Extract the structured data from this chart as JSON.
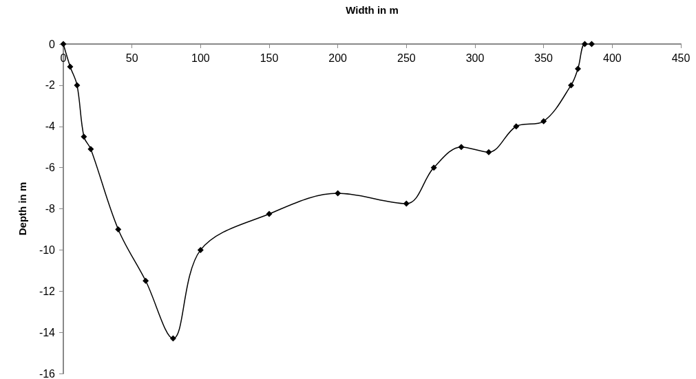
{
  "chart_data": {
    "type": "line",
    "xlabel": "Width in m",
    "ylabel": "Depth in m",
    "x": [
      0,
      5,
      10,
      15,
      20,
      40,
      60,
      80,
      100,
      150,
      200,
      250,
      270,
      290,
      310,
      330,
      350,
      370,
      375,
      380,
      385
    ],
    "series": [
      {
        "color": "#000000",
        "values": [
          0,
          -1.1,
          -2,
          -4.5,
          -5.1,
          -9,
          -11.5,
          -14.3,
          -10,
          -8.25,
          -7.25,
          -7.75,
          -6,
          -5,
          -5.25,
          -4,
          -3.75,
          -2,
          -1.2,
          0,
          0
        ]
      }
    ],
    "xlim": [
      0,
      450
    ],
    "xticks": [
      0,
      50,
      100,
      150,
      200,
      250,
      300,
      350,
      400,
      450
    ],
    "ylim": [
      -16,
      0
    ],
    "yticks": [
      -16,
      -14,
      -12,
      -10,
      -8,
      -6,
      -4,
      -2,
      0
    ],
    "grid": false,
    "marker": "diamond",
    "line_style": "solid"
  }
}
